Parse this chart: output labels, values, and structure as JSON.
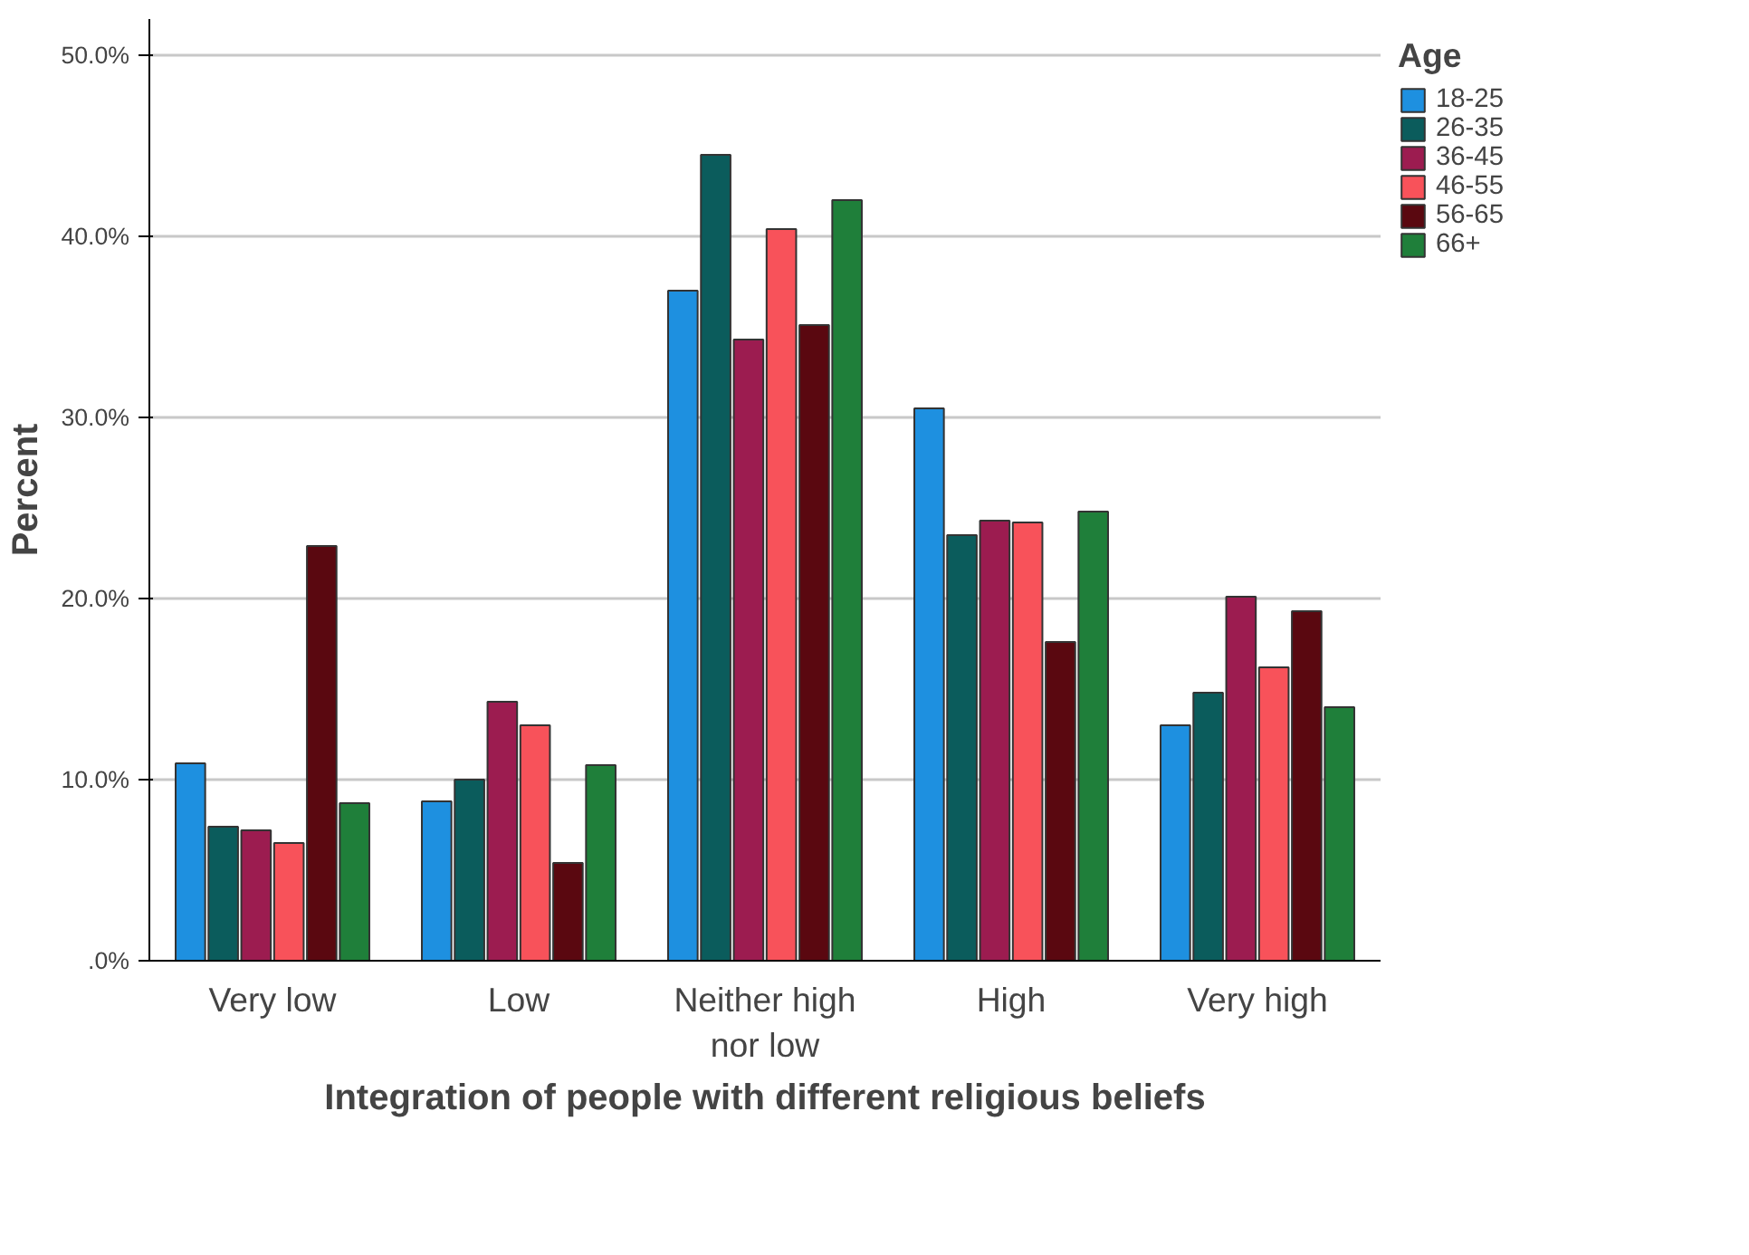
{
  "chart_data": {
    "type": "bar",
    "xlabel": "Integration of people with different religious beliefs",
    "ylabel": "Percent",
    "legend_title": "Age",
    "categories": [
      "Very low",
      "Low",
      "Neither high nor low",
      "High",
      "Very high"
    ],
    "series": [
      {
        "name": "18-25",
        "color": "#1e90e0",
        "values": [
          10.9,
          8.8,
          37.0,
          30.5,
          13.0
        ]
      },
      {
        "name": "26-35",
        "color": "#0b5c5c",
        "values": [
          7.4,
          10.0,
          44.5,
          23.5,
          14.8
        ]
      },
      {
        "name": "36-45",
        "color": "#9c1c50",
        "values": [
          7.2,
          14.3,
          34.3,
          24.3,
          20.1
        ]
      },
      {
        "name": "46-55",
        "color": "#f8525a",
        "values": [
          6.5,
          13.0,
          40.4,
          24.2,
          16.2
        ]
      },
      {
        "name": "56-65",
        "color": "#5a0810",
        "values": [
          22.9,
          5.4,
          35.1,
          17.6,
          19.3
        ]
      },
      {
        "name": "66+",
        "color": "#1f7f3a",
        "values": [
          8.7,
          10.8,
          42.0,
          24.8,
          14.0
        ]
      }
    ],
    "ylim": [
      0,
      52
    ],
    "yticks": [
      {
        "value": 0,
        "label": ".0%"
      },
      {
        "value": 10,
        "label": "10.0%"
      },
      {
        "value": 20,
        "label": "20.0%"
      },
      {
        "value": 30,
        "label": "30.0%"
      },
      {
        "value": 40,
        "label": "40.0%"
      },
      {
        "value": 50,
        "label": "50.0%"
      }
    ],
    "grid": "y",
    "legend": "right"
  }
}
